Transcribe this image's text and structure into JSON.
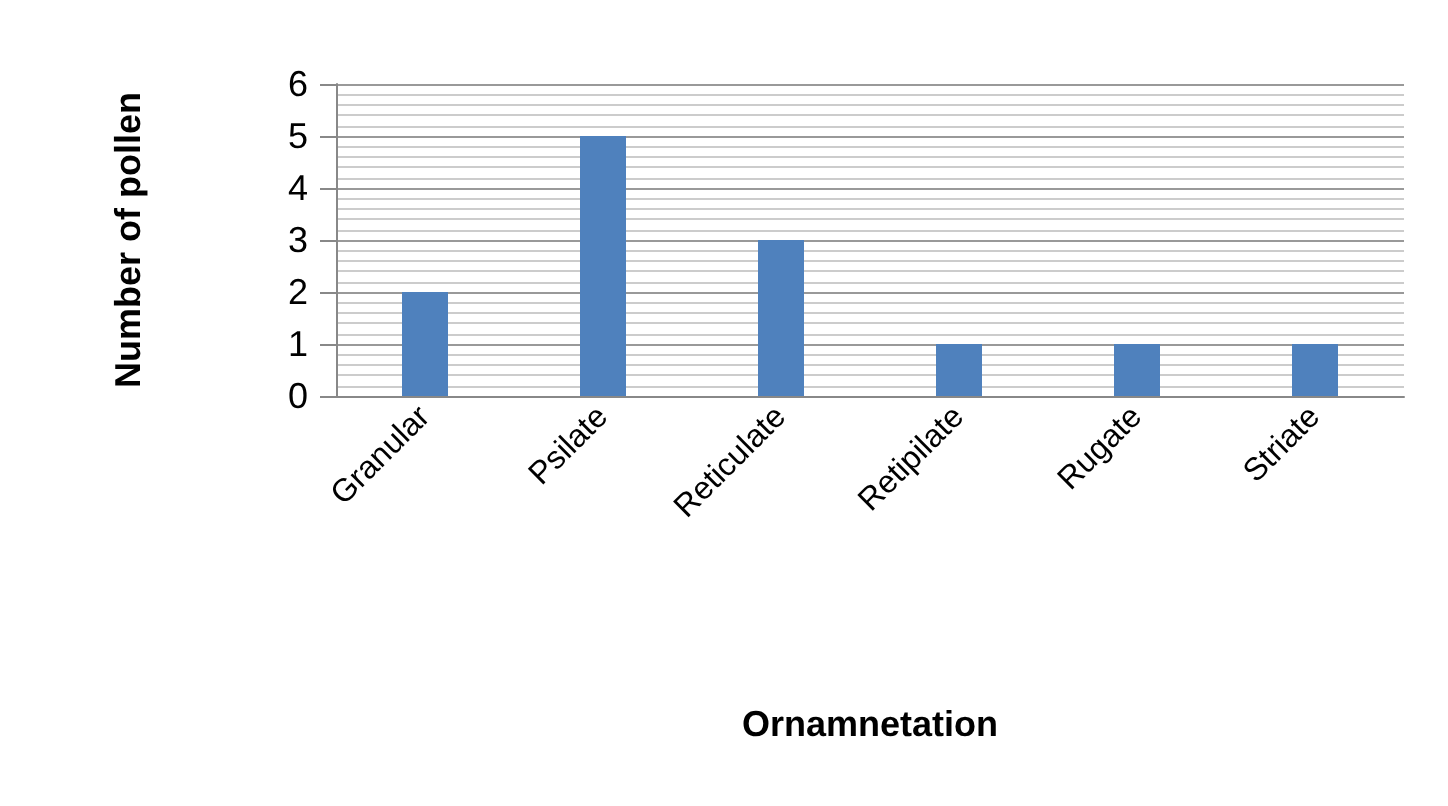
{
  "chart_data": {
    "type": "bar",
    "xlabel": "Ornamnetation",
    "ylabel": "Number of pollen",
    "categories": [
      "Granular",
      "Psilate",
      "Reticulate",
      "Retipilate",
      "Rugate",
      "Striate"
    ],
    "values": [
      2,
      5,
      3,
      1,
      1,
      1
    ],
    "color": "#4f81bd",
    "ylim": [
      0,
      6
    ],
    "yticks": [
      0,
      1,
      2,
      3,
      4,
      5,
      6
    ],
    "grid": "y"
  }
}
